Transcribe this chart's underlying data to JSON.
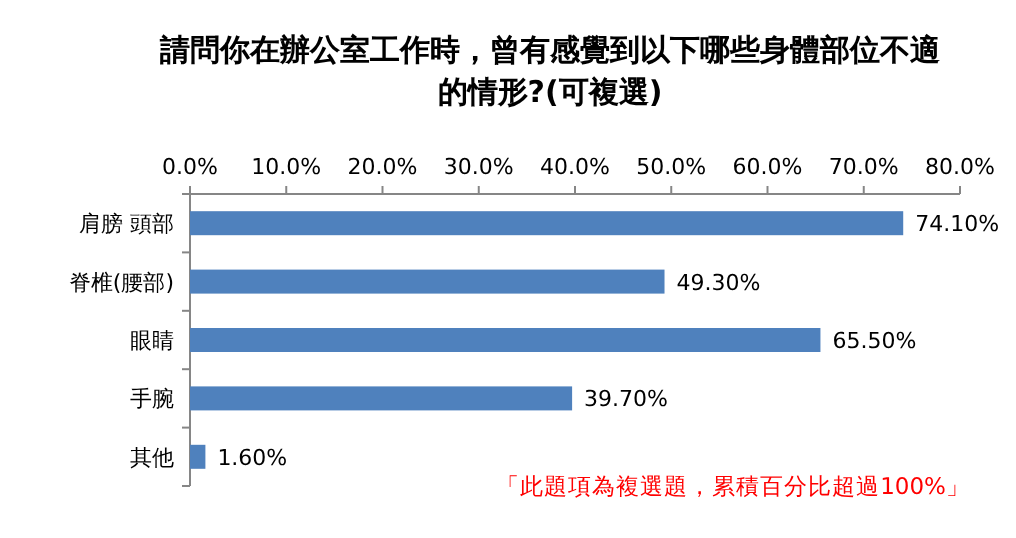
{
  "chart_data": {
    "type": "bar",
    "orientation": "horizontal",
    "title": "請問你在辦公室工作時，曾有感覺到以下哪些身體部位不適的情形?(可複選)",
    "categories": [
      "肩膀 頭部",
      "脊椎(腰部)",
      "眼睛",
      "手腕",
      "其他"
    ],
    "values": [
      74.1,
      49.3,
      65.5,
      39.7,
      1.6
    ],
    "value_labels": [
      "74.10%",
      "49.30%",
      "65.50%",
      "39.70%",
      "1.60%"
    ],
    "color": "#4f81bd",
    "xlim": [
      0,
      80
    ],
    "xticks": [
      {
        "value": 0,
        "label": "0.0%"
      },
      {
        "value": 10,
        "label": "10.0%"
      },
      {
        "value": 20,
        "label": "20.0%"
      },
      {
        "value": 30,
        "label": "30.0%"
      },
      {
        "value": 40,
        "label": "40.0%"
      },
      {
        "value": 50,
        "label": "50.0%"
      },
      {
        "value": 60,
        "label": "60.0%"
      },
      {
        "value": 70,
        "label": "70.0%"
      },
      {
        "value": 80,
        "label": "80.0%"
      }
    ],
    "annotations": [
      "「此題項為複選題，累積百分比超過100%」"
    ],
    "grid": false
  }
}
